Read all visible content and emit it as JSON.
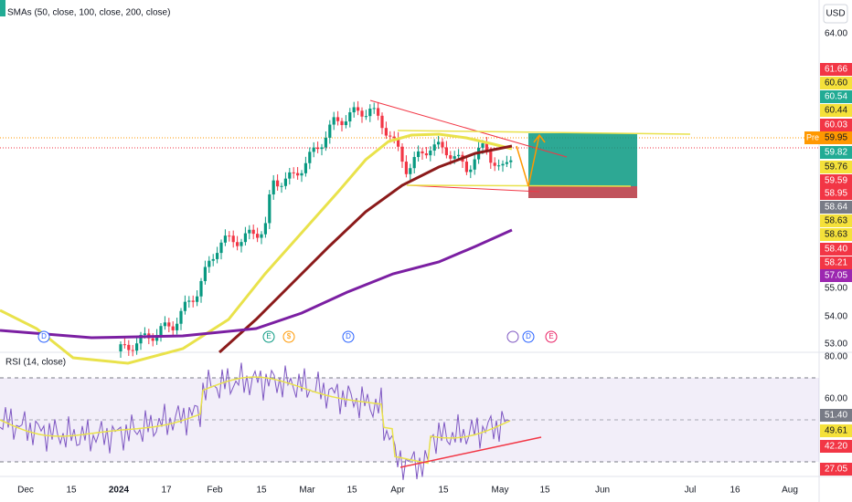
{
  "indicator_labels": {
    "smas": "SMAs (50, close, 100, close, 200, close)",
    "rsi": "RSI (14, close)"
  },
  "currency": "USD",
  "pre_label": "Pre",
  "price_axis": [
    "64.00",
    "55.00",
    "54.00",
    "53.00"
  ],
  "price_badges": [
    {
      "label": "61.66",
      "color": "#f23645"
    },
    {
      "label": "60.60",
      "color": "#f5e13a"
    },
    {
      "label": "60.54",
      "color": "#22ab94"
    },
    {
      "label": "60.44",
      "color": "#f5e13a"
    },
    {
      "label": "60.03",
      "color": "#f23645"
    },
    {
      "label": "59.95",
      "color": "#ff9800"
    },
    {
      "label": "59.82",
      "color": "#22ab94"
    },
    {
      "label": "59.76",
      "color": "#f5e13a"
    },
    {
      "label": "59.59",
      "color": "#f23645"
    },
    {
      "label": "58.95",
      "color": "#f23645"
    },
    {
      "label": "58.64",
      "color": "#787b86"
    },
    {
      "label": "58.63",
      "color": "#f5e13a"
    },
    {
      "label": "58.63",
      "color": "#f5e13a"
    },
    {
      "label": "58.40",
      "color": "#f23645"
    },
    {
      "label": "58.21",
      "color": "#f23645"
    },
    {
      "label": "57.05",
      "color": "#9c27b0"
    }
  ],
  "rsi_axis": [
    "80.00",
    "60.00"
  ],
  "rsi_badges": [
    {
      "label": "51.40",
      "color": "#787b86"
    },
    {
      "label": "49.61",
      "color": "#f5e13a"
    },
    {
      "label": "42.20",
      "color": "#f23645"
    },
    {
      "label": "27.05",
      "color": "#f23645"
    }
  ],
  "time_axis": [
    "Dec",
    "15",
    "2024",
    "17",
    "Feb",
    "15",
    "Mar",
    "15",
    "Apr",
    "15",
    "May",
    "15",
    "Jun",
    "Jul",
    "16",
    "Aug"
  ],
  "events": [
    "D",
    "E",
    "$",
    "D",
    "D",
    "E"
  ]
}
